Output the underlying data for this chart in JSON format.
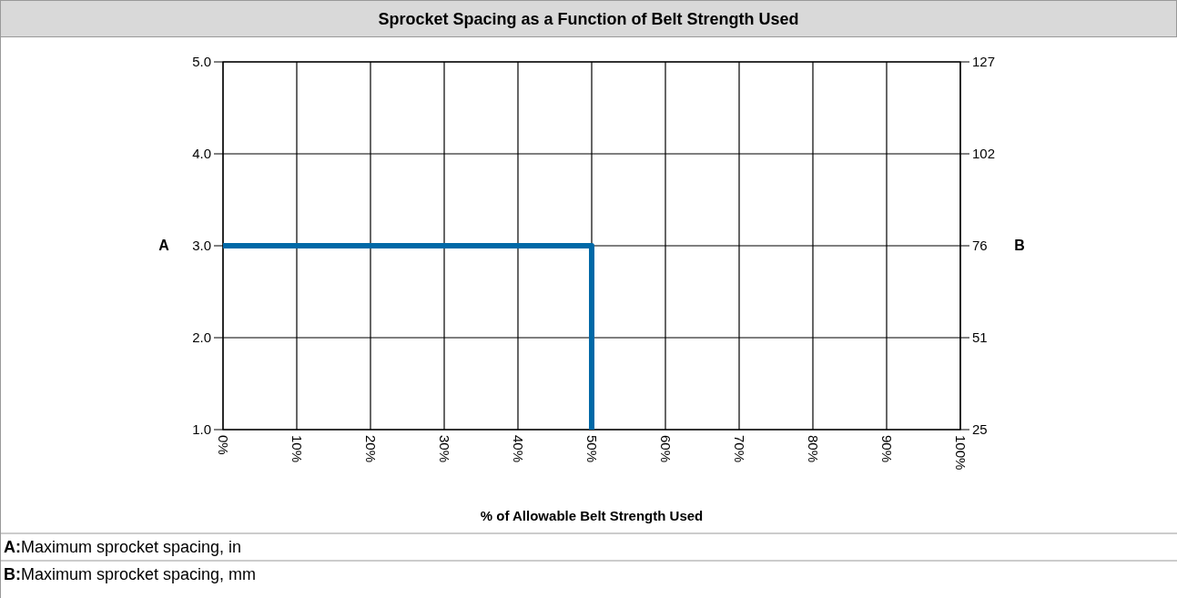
{
  "chart_data": {
    "type": "step",
    "title": "Sprocket Spacing as a Function of Belt Strength Used",
    "xlabel": "% of Allowable Belt Strength Used",
    "ylabel": "A",
    "y2label": "B",
    "x": [
      0,
      50
    ],
    "series": [
      {
        "color": "#0069a7",
        "values": [
          3,
          1
        ]
      }
    ],
    "xlim": [
      0,
      100
    ],
    "xticks": [
      {
        "value": 0,
        "label": "0%"
      },
      {
        "value": 10,
        "label": "10%"
      },
      {
        "value": 20,
        "label": "20%"
      },
      {
        "value": 30,
        "label": "30%"
      },
      {
        "value": 40,
        "label": "40%"
      },
      {
        "value": 50,
        "label": "50%"
      },
      {
        "value": 60,
        "label": "60%"
      },
      {
        "value": 70,
        "label": "70%"
      },
      {
        "value": 80,
        "label": "80%"
      },
      {
        "value": 90,
        "label": "90%"
      },
      {
        "value": 100,
        "label": "100%"
      }
    ],
    "ylim": [
      1,
      5
    ],
    "yticks": [
      {
        "value": 1,
        "label": "1.0"
      },
      {
        "value": 2,
        "label": "2.0"
      },
      {
        "value": 3,
        "label": "3.0"
      },
      {
        "value": 4,
        "label": "4.0"
      },
      {
        "value": 5,
        "label": "5.0"
      }
    ],
    "y2lim": [
      25.4,
      127
    ],
    "y2ticks": [
      {
        "value": 25.4,
        "label": "25"
      },
      {
        "value": 50.8,
        "label": "51"
      },
      {
        "value": 76.2,
        "label": "76"
      },
      {
        "value": 101.6,
        "label": "102"
      },
      {
        "value": 127,
        "label": "127"
      }
    ],
    "grid": true,
    "line_style": "solid",
    "marker": "none",
    "annotations": [
      "A:Maximum sprocket spacing, in",
      "B:Maximum sprocket spacing, mm"
    ]
  }
}
